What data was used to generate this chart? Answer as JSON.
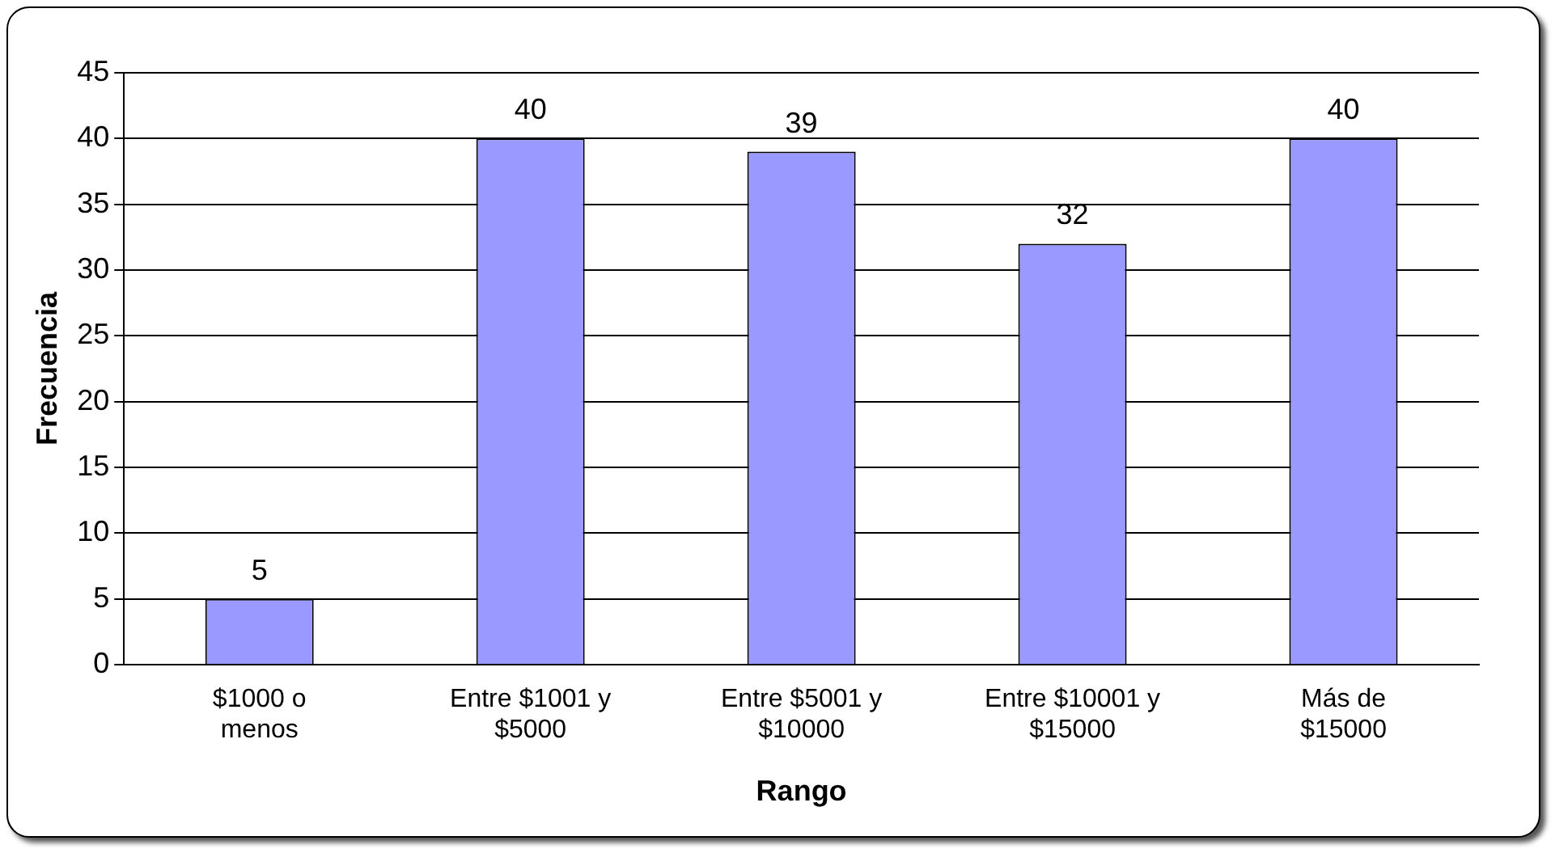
{
  "chart_data": {
    "type": "bar",
    "xlabel": "Rango",
    "ylabel": "Frecuencia",
    "categories": [
      "$1000 o menos",
      "Entre $1001 y $5000",
      "Entre $5001 y $10000",
      "Entre $10001 y $15000",
      "Más de $15000"
    ],
    "values": [
      5,
      40,
      39,
      32,
      40
    ],
    "color": "#9999ff",
    "ylim": [
      0,
      45
    ],
    "yticks": [
      0,
      5,
      10,
      15,
      20,
      25,
      30,
      35,
      40,
      45
    ],
    "grid": "y",
    "data_labels": true
  }
}
